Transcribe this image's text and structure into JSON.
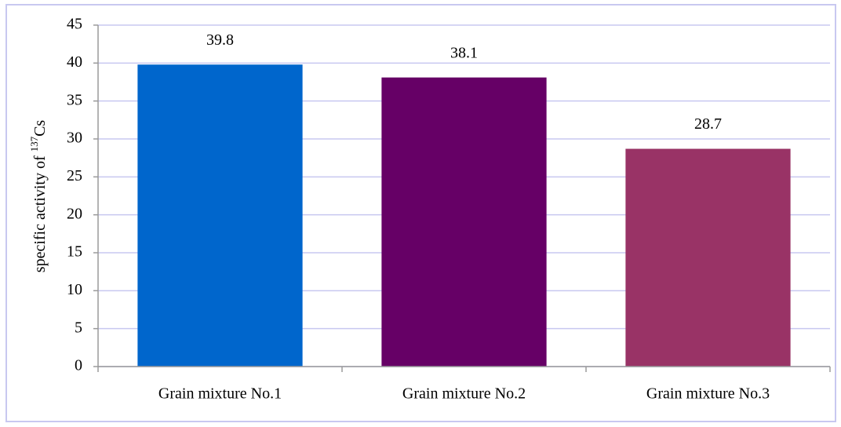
{
  "chart_data": {
    "type": "bar",
    "ylabel": {
      "text": "specific activity of ",
      "sup": "137",
      "tail": "Cs"
    },
    "categories": [
      "Grain mixture No.1",
      "Grain mixture No.2",
      "Grain mixture No.3"
    ],
    "values": [
      39.8,
      38.1,
      28.7
    ],
    "colors": [
      "#0066cc",
      "#660066",
      "#993366"
    ],
    "ylim": [
      0,
      45
    ],
    "yticks": [
      0,
      5,
      10,
      15,
      20,
      25,
      30,
      35,
      40,
      45
    ],
    "grid": true
  }
}
